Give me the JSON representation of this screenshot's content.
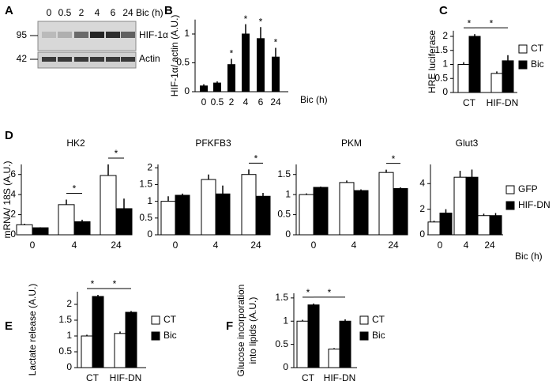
{
  "blot": {
    "panel": "A",
    "lanes": [
      "0",
      "0.5",
      "2",
      "4",
      "6",
      "24"
    ],
    "time_label": "Bic (h)",
    "rows": [
      {
        "name": "HIF-1α",
        "marker": "95"
      },
      {
        "name": "Actin",
        "marker": "42"
      }
    ]
  },
  "chart_data": [
    {
      "type": "bar",
      "panel": "B",
      "ylabel": "HIF-1α/ actin (A.U.)",
      "xlabel": "Bic (h)",
      "categories": [
        "0",
        "0.5",
        "2",
        "4",
        "6",
        "24"
      ],
      "ylim": [
        0,
        1.25
      ],
      "yticks": [
        0,
        0.5,
        1
      ],
      "series": [
        {
          "color": "#000000",
          "values": [
            0.1,
            0.15,
            0.47,
            1.0,
            0.92,
            0.6
          ],
          "errors": [
            0.03,
            0.03,
            0.1,
            0.17,
            0.2,
            0.16
          ],
          "significance": [
            null,
            null,
            "*",
            "*",
            "*",
            "*"
          ]
        }
      ]
    },
    {
      "type": "bar",
      "panel": "C",
      "ylabel": "HRE luciferase",
      "categories": [
        "CT",
        "HIF-DN"
      ],
      "ylim": [
        0,
        2.2
      ],
      "yticks": [
        0,
        0.5,
        1,
        1.5,
        2
      ],
      "series": [
        {
          "name": "CT",
          "color": "#ffffff",
          "values": [
            1.0,
            0.68
          ],
          "errors": [
            0.08,
            0.07
          ]
        },
        {
          "name": "Bic",
          "color": "#000000",
          "values": [
            2.0,
            1.13
          ],
          "errors": [
            0.08,
            0.2
          ]
        }
      ],
      "brackets": [
        {
          "label": "*",
          "from": {
            "category": "CT",
            "series": "CT"
          },
          "to": {
            "category": "CT",
            "series": "Bic"
          }
        },
        {
          "label": "*",
          "from": {
            "category": "CT",
            "series": "Bic"
          },
          "to": {
            "category": "HIF-DN",
            "series": "Bic"
          }
        }
      ]
    },
    {
      "type": "bar",
      "panel": "D",
      "ylabel": "mRNA/ 18S (A.U.)",
      "xlabel": "Bic (h)",
      "categories": [
        "0",
        "4",
        "24"
      ],
      "series": [
        {
          "name": "GFP",
          "color": "#ffffff"
        },
        {
          "name": "HIF-DN",
          "color": "#000000"
        }
      ],
      "subplots": [
        {
          "title": "HK2",
          "ylim": [
            0,
            7
          ],
          "yticks": [
            0,
            2,
            4,
            6
          ],
          "series": [
            {
              "values": [
                1.0,
                3.0,
                5.9
              ],
              "errors": [
                0.1,
                0.5,
                1.1
              ]
            },
            {
              "values": [
                0.7,
                1.3,
                2.6
              ],
              "errors": [
                0.05,
                0.2,
                1.0
              ]
            }
          ],
          "brackets": [
            {
              "label": "*",
              "category": "4"
            },
            {
              "label": "*",
              "category": "24"
            }
          ]
        },
        {
          "title": "PFKFB3",
          "ylim": [
            0,
            2.1
          ],
          "yticks": [
            0,
            0.5,
            1,
            1.5,
            2
          ],
          "series": [
            {
              "values": [
                1.0,
                1.65,
                1.8
              ],
              "errors": [
                0.15,
                0.15,
                0.15
              ]
            },
            {
              "values": [
                1.18,
                1.22,
                1.15
              ],
              "errors": [
                0.05,
                0.25,
                0.1
              ]
            }
          ],
          "brackets": [
            {
              "label": "*",
              "category": "24"
            }
          ]
        },
        {
          "title": "PKM",
          "ylim": [
            0,
            1.75
          ],
          "yticks": [
            0,
            0.5,
            1,
            1.5
          ],
          "series": [
            {
              "values": [
                1.0,
                1.3,
                1.55
              ],
              "errors": [
                0.03,
                0.05,
                0.07
              ]
            },
            {
              "values": [
                1.18,
                1.1,
                1.15
              ],
              "errors": [
                0.02,
                0.03,
                0.03
              ]
            }
          ],
          "brackets": [
            {
              "label": "*",
              "category": "24"
            }
          ]
        },
        {
          "title": "Glut3",
          "ylim": [
            0,
            5.5
          ],
          "yticks": [
            0,
            2,
            4
          ],
          "series": [
            {
              "values": [
                1.0,
                4.5,
                1.5
              ],
              "errors": [
                0.1,
                0.5,
                0.15
              ]
            },
            {
              "values": [
                1.7,
                4.5,
                1.5
              ],
              "errors": [
                0.3,
                0.6,
                0.2
              ]
            }
          ]
        }
      ]
    },
    {
      "type": "bar",
      "panel": "E",
      "ylabel": "Lactate release (A.U.)",
      "categories": [
        "CT",
        "HIF-DN"
      ],
      "ylim": [
        0,
        2.4
      ],
      "yticks": [
        0,
        0.5,
        1,
        1.5,
        2
      ],
      "series": [
        {
          "name": "CT",
          "color": "#ffffff",
          "values": [
            1.0,
            1.08
          ],
          "errors": [
            0.04,
            0.06
          ]
        },
        {
          "name": "Bic",
          "color": "#000000",
          "values": [
            2.25,
            1.75
          ],
          "errors": [
            0.05,
            0.04
          ]
        }
      ],
      "brackets": [
        {
          "label": "*",
          "from": {
            "category": "CT",
            "series": "CT"
          },
          "to": {
            "category": "CT",
            "series": "Bic"
          }
        },
        {
          "label": "*",
          "from": {
            "category": "CT",
            "series": "Bic"
          },
          "to": {
            "category": "HIF-DN",
            "series": "Bic"
          }
        }
      ]
    },
    {
      "type": "bar",
      "panel": "F",
      "ylabel": [
        "Glucose incorporation",
        "into lipids (A.U.)"
      ],
      "categories": [
        "CT",
        "HIF-DN"
      ],
      "ylim": [
        0,
        1.6
      ],
      "yticks": [
        0,
        0.5,
        1,
        1.5
      ],
      "series": [
        {
          "name": "CT",
          "color": "#ffffff",
          "values": [
            1.0,
            0.4
          ],
          "errors": [
            0.03,
            0.02
          ]
        },
        {
          "name": "Bic",
          "color": "#000000",
          "values": [
            1.35,
            1.0
          ],
          "errors": [
            0.03,
            0.04
          ]
        }
      ],
      "brackets": [
        {
          "label": "*",
          "from": {
            "category": "CT",
            "series": "CT"
          },
          "to": {
            "category": "CT",
            "series": "Bic"
          }
        },
        {
          "label": "*",
          "from": {
            "category": "CT",
            "series": "Bic"
          },
          "to": {
            "category": "HIF-DN",
            "series": "Bic"
          }
        }
      ]
    }
  ]
}
